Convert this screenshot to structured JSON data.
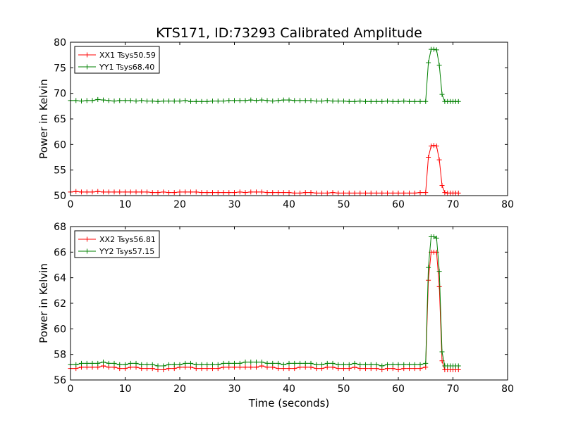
{
  "title": "KTS171, ID:73293 Calibrated Amplitude",
  "xlabel": "Time (seconds)",
  "chart_data": [
    {
      "type": "line",
      "ylabel": "Power in Kelvin",
      "xlim": [
        0,
        80
      ],
      "ylim": [
        50,
        80
      ],
      "xticks": [
        0,
        10,
        20,
        30,
        40,
        50,
        60,
        70,
        80
      ],
      "yticks": [
        50,
        55,
        60,
        65,
        70,
        75,
        80
      ],
      "legend_position": "top-left",
      "grid": false,
      "series": [
        {
          "name": "XX1 Tsys50.59",
          "color": "#ff0000",
          "x": [
            0,
            1,
            2,
            3,
            4,
            5,
            6,
            7,
            8,
            9,
            10,
            11,
            12,
            13,
            14,
            15,
            16,
            17,
            18,
            19,
            20,
            21,
            22,
            23,
            24,
            25,
            26,
            27,
            28,
            29,
            30,
            31,
            32,
            33,
            34,
            35,
            36,
            37,
            38,
            39,
            40,
            41,
            42,
            43,
            44,
            45,
            46,
            47,
            48,
            49,
            50,
            51,
            52,
            53,
            54,
            55,
            56,
            57,
            58,
            59,
            60,
            61,
            62,
            63,
            64,
            65,
            65.5,
            66,
            66.5,
            67,
            67.5,
            68,
            68.5,
            69,
            69.5,
            70,
            70.5,
            71
          ],
          "y": [
            50.7,
            50.8,
            50.7,
            50.7,
            50.7,
            50.8,
            50.7,
            50.7,
            50.7,
            50.7,
            50.7,
            50.7,
            50.7,
            50.7,
            50.7,
            50.6,
            50.6,
            50.7,
            50.6,
            50.6,
            50.7,
            50.7,
            50.7,
            50.7,
            50.6,
            50.6,
            50.6,
            50.6,
            50.6,
            50.6,
            50.6,
            50.7,
            50.6,
            50.7,
            50.7,
            50.7,
            50.6,
            50.6,
            50.6,
            50.6,
            50.6,
            50.5,
            50.5,
            50.6,
            50.6,
            50.5,
            50.5,
            50.5,
            50.6,
            50.5,
            50.5,
            50.5,
            50.5,
            50.5,
            50.5,
            50.5,
            50.5,
            50.5,
            50.5,
            50.5,
            50.5,
            50.5,
            50.5,
            50.5,
            50.6,
            50.6,
            57.5,
            59.7,
            59.8,
            59.7,
            57.0,
            52.0,
            50.6,
            50.5,
            50.5,
            50.5,
            50.5,
            50.5
          ]
        },
        {
          "name": "YY1 Tsys68.40",
          "color": "#008000",
          "x": [
            0,
            1,
            2,
            3,
            4,
            5,
            6,
            7,
            8,
            9,
            10,
            11,
            12,
            13,
            14,
            15,
            16,
            17,
            18,
            19,
            20,
            21,
            22,
            23,
            24,
            25,
            26,
            27,
            28,
            29,
            30,
            31,
            32,
            33,
            34,
            35,
            36,
            37,
            38,
            39,
            40,
            41,
            42,
            43,
            44,
            45,
            46,
            47,
            48,
            49,
            50,
            51,
            52,
            53,
            54,
            55,
            56,
            57,
            58,
            59,
            60,
            61,
            62,
            63,
            64,
            65,
            65.5,
            66,
            66.5,
            67,
            67.5,
            68,
            68.5,
            69,
            69.5,
            70,
            70.5,
            71
          ],
          "y": [
            68.6,
            68.6,
            68.5,
            68.6,
            68.6,
            68.8,
            68.7,
            68.6,
            68.5,
            68.6,
            68.6,
            68.6,
            68.5,
            68.6,
            68.5,
            68.5,
            68.4,
            68.5,
            68.5,
            68.5,
            68.5,
            68.6,
            68.4,
            68.4,
            68.4,
            68.4,
            68.5,
            68.5,
            68.5,
            68.6,
            68.6,
            68.6,
            68.6,
            68.7,
            68.6,
            68.7,
            68.6,
            68.5,
            68.6,
            68.7,
            68.7,
            68.6,
            68.6,
            68.6,
            68.6,
            68.5,
            68.5,
            68.6,
            68.5,
            68.5,
            68.5,
            68.4,
            68.4,
            68.5,
            68.4,
            68.4,
            68.4,
            68.4,
            68.5,
            68.4,
            68.4,
            68.5,
            68.4,
            68.4,
            68.4,
            68.4,
            76.0,
            78.6,
            78.6,
            78.5,
            75.5,
            69.8,
            68.4,
            68.4,
            68.4,
            68.4,
            68.4,
            68.4
          ]
        }
      ]
    },
    {
      "type": "line",
      "ylabel": "Power in Kelvin",
      "xlabel": "Time (seconds)",
      "xlim": [
        0,
        80
      ],
      "ylim": [
        56,
        68
      ],
      "xticks": [
        0,
        10,
        20,
        30,
        40,
        50,
        60,
        70,
        80
      ],
      "yticks": [
        56,
        58,
        60,
        62,
        64,
        66,
        68
      ],
      "legend_position": "top-left",
      "grid": false,
      "series": [
        {
          "name": "XX2 Tsys56.81",
          "color": "#ff0000",
          "x": [
            0,
            1,
            2,
            3,
            4,
            5,
            6,
            7,
            8,
            9,
            10,
            11,
            12,
            13,
            14,
            15,
            16,
            17,
            18,
            19,
            20,
            21,
            22,
            23,
            24,
            25,
            26,
            27,
            28,
            29,
            30,
            31,
            32,
            33,
            34,
            35,
            36,
            37,
            38,
            39,
            40,
            41,
            42,
            43,
            44,
            45,
            46,
            47,
            48,
            49,
            50,
            51,
            52,
            53,
            54,
            55,
            56,
            57,
            58,
            59,
            60,
            61,
            62,
            63,
            64,
            65,
            65.5,
            66,
            66.5,
            67,
            67.5,
            68,
            68.5,
            69,
            69.5,
            70,
            70.5,
            71
          ],
          "y": [
            56.9,
            56.9,
            57.0,
            57.0,
            57.0,
            57.0,
            57.1,
            57.0,
            57.0,
            56.9,
            56.9,
            57.0,
            57.0,
            56.9,
            56.9,
            56.9,
            56.8,
            56.8,
            56.9,
            56.9,
            57.0,
            57.0,
            57.0,
            56.9,
            56.9,
            56.9,
            56.9,
            56.9,
            57.0,
            57.0,
            57.0,
            57.0,
            57.0,
            57.0,
            57.0,
            57.1,
            57.0,
            57.0,
            56.9,
            56.9,
            56.9,
            56.9,
            57.0,
            57.0,
            57.0,
            56.9,
            56.9,
            57.0,
            57.0,
            56.9,
            56.9,
            56.9,
            57.0,
            56.9,
            56.9,
            56.9,
            56.9,
            56.8,
            56.9,
            56.9,
            56.8,
            56.9,
            56.9,
            56.9,
            56.9,
            57.0,
            63.8,
            66.0,
            66.0,
            66.0,
            63.3,
            57.5,
            56.8,
            56.8,
            56.8,
            56.8,
            56.8,
            56.8
          ]
        },
        {
          "name": "YY2 Tsys57.15",
          "color": "#008000",
          "x": [
            0,
            1,
            2,
            3,
            4,
            5,
            6,
            7,
            8,
            9,
            10,
            11,
            12,
            13,
            14,
            15,
            16,
            17,
            18,
            19,
            20,
            21,
            22,
            23,
            24,
            25,
            26,
            27,
            28,
            29,
            30,
            31,
            32,
            33,
            34,
            35,
            36,
            37,
            38,
            39,
            40,
            41,
            42,
            43,
            44,
            45,
            46,
            47,
            48,
            49,
            50,
            51,
            52,
            53,
            54,
            55,
            56,
            57,
            58,
            59,
            60,
            61,
            62,
            63,
            64,
            65,
            65.5,
            66,
            66.5,
            67,
            67.5,
            68,
            68.5,
            69,
            69.5,
            70,
            70.5,
            71
          ],
          "y": [
            57.2,
            57.2,
            57.3,
            57.3,
            57.3,
            57.3,
            57.4,
            57.3,
            57.3,
            57.2,
            57.2,
            57.3,
            57.3,
            57.2,
            57.2,
            57.2,
            57.1,
            57.1,
            57.2,
            57.2,
            57.2,
            57.3,
            57.3,
            57.2,
            57.2,
            57.2,
            57.2,
            57.2,
            57.3,
            57.3,
            57.3,
            57.3,
            57.4,
            57.4,
            57.4,
            57.4,
            57.3,
            57.3,
            57.3,
            57.2,
            57.3,
            57.3,
            57.3,
            57.3,
            57.3,
            57.2,
            57.2,
            57.3,
            57.3,
            57.2,
            57.2,
            57.2,
            57.3,
            57.2,
            57.2,
            57.2,
            57.2,
            57.1,
            57.2,
            57.2,
            57.2,
            57.2,
            57.2,
            57.2,
            57.2,
            57.3,
            64.8,
            67.2,
            67.2,
            67.1,
            64.5,
            58.2,
            57.1,
            57.1,
            57.1,
            57.1,
            57.1,
            57.1
          ]
        }
      ]
    }
  ]
}
